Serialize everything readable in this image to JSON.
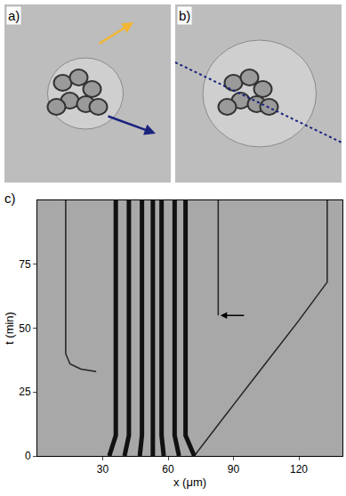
{
  "panels": {
    "a": "a)",
    "b": "b)"
  },
  "chart_data": {
    "type": "line",
    "label": "c)",
    "xlabel": "x (μm)",
    "ylabel": "t (min)",
    "xlim": [
      0,
      140
    ],
    "xticks": [
      30,
      60,
      90,
      120
    ],
    "ylim": [
      0,
      100
    ],
    "yticks": [
      0,
      25,
      50,
      75
    ],
    "grid": false,
    "series": [
      {
        "color": "#222222",
        "line_style": "solid",
        "x": [
          13,
          13,
          15,
          20,
          27
        ],
        "values": [
          100,
          40,
          36,
          34,
          33
        ]
      },
      {
        "color": "#222222",
        "line_style": "solid",
        "x": [
          72,
          80,
          90,
          100,
          110,
          120,
          133,
          133
        ],
        "values": [
          0,
          9,
          20,
          31,
          42,
          53,
          68,
          100
        ]
      },
      {
        "color": "#222222",
        "line_style": "solid",
        "x": [
          83,
          83
        ],
        "values": [
          100,
          55
        ]
      },
      {
        "color": "#111111",
        "line_style": "thick",
        "x": [
          33,
          36,
          36
        ],
        "values": [
          0,
          8,
          100
        ]
      },
      {
        "color": "#111111",
        "line_style": "thick",
        "x": [
          40,
          42,
          42
        ],
        "values": [
          0,
          8,
          100
        ]
      },
      {
        "color": "#111111",
        "line_style": "thick",
        "x": [
          47,
          48,
          48
        ],
        "values": [
          0,
          8,
          100
        ]
      },
      {
        "color": "#111111",
        "line_style": "thick",
        "x": [
          53,
          53
        ],
        "values": [
          0,
          100
        ]
      },
      {
        "color": "#111111",
        "line_style": "thick",
        "x": [
          58,
          57,
          57
        ],
        "values": [
          0,
          8,
          100
        ]
      },
      {
        "color": "#111111",
        "line_style": "thick",
        "x": [
          65,
          63,
          63
        ],
        "values": [
          0,
          8,
          100
        ]
      },
      {
        "color": "#111111",
        "line_style": "thick",
        "x": [
          72,
          68,
          68
        ],
        "values": [
          0,
          8,
          100
        ]
      }
    ],
    "annotations": [
      {
        "x": 84,
        "y": 55,
        "arrow": true
      }
    ]
  }
}
